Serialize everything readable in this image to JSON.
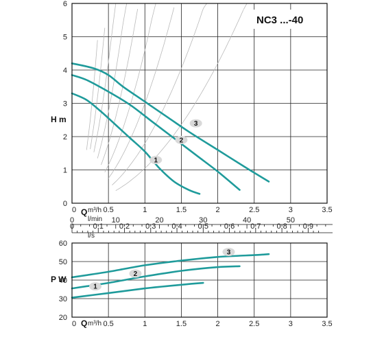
{
  "chart_data": [
    {
      "type": "line",
      "title": "NC3 ...-40",
      "ylabel": "H m",
      "xlabel": "Q",
      "x_unit": "m³/h",
      "xlim": [
        0,
        3.5
      ],
      "ylim": [
        0,
        6
      ],
      "x_ticks": [
        "0",
        "0.5",
        "1",
        "1.5",
        "2",
        "2.5",
        "3",
        "3.5"
      ],
      "y_ticks": [
        "0",
        "1",
        "2",
        "3",
        "4",
        "5",
        "6"
      ],
      "grid": true,
      "secondary_axes": [
        {
          "unit": "l/min",
          "ticks": [
            "0",
            "10",
            "20",
            "30",
            "40",
            "50"
          ]
        },
        {
          "unit": "l/s",
          "ticks": [
            "0",
            "0.1",
            "0.2",
            "0.3",
            "0.4",
            "0.5",
            "0.6",
            "0.7",
            "0.8",
            "0.9"
          ]
        }
      ],
      "series": [
        {
          "name": "1",
          "x": [
            0,
            0.2,
            0.4,
            0.6,
            0.8,
            1.0,
            1.2,
            1.4,
            1.6,
            1.75
          ],
          "y": [
            3.3,
            3.1,
            2.75,
            2.35,
            1.95,
            1.55,
            1.05,
            0.65,
            0.4,
            0.28
          ]
        },
        {
          "name": "2",
          "x": [
            0,
            0.2,
            0.5,
            0.8,
            1.1,
            1.4,
            1.7,
            2.0,
            2.3
          ],
          "y": [
            3.85,
            3.7,
            3.35,
            2.95,
            2.45,
            1.95,
            1.45,
            0.95,
            0.4
          ]
        },
        {
          "name": "3",
          "x": [
            0,
            0.3,
            0.5,
            0.7,
            1.0,
            1.3,
            1.6,
            2.0,
            2.4,
            2.7
          ],
          "y": [
            4.2,
            4.05,
            3.85,
            3.5,
            3.05,
            2.6,
            2.15,
            1.6,
            1.05,
            0.65
          ]
        }
      ],
      "series_labels": [
        "1",
        "2",
        "3"
      ],
      "system_curves": true
    },
    {
      "type": "line",
      "ylabel": "P W",
      "xlabel": "Q",
      "x_unit": "m³/h",
      "xlim": [
        0,
        3.5
      ],
      "ylim": [
        20,
        60
      ],
      "x_ticks": [
        "0",
        "0.5",
        "1",
        "1.5",
        "2",
        "2.5",
        "3",
        "3.5"
      ],
      "y_ticks": [
        "20",
        "30",
        "40",
        "50",
        "60"
      ],
      "grid": true,
      "series": [
        {
          "name": "1",
          "x": [
            0,
            0.5,
            1.0,
            1.5,
            1.8
          ],
          "y": [
            30.5,
            33,
            35.5,
            37.5,
            38.5
          ]
        },
        {
          "name": "2",
          "x": [
            0,
            0.5,
            1.0,
            1.5,
            2.0,
            2.3
          ],
          "y": [
            35.5,
            38.5,
            42,
            45,
            47,
            47.5
          ]
        },
        {
          "name": "3",
          "x": [
            0,
            0.5,
            1.0,
            1.5,
            2.0,
            2.5,
            2.7
          ],
          "y": [
            41.5,
            44.5,
            48,
            50.5,
            52.5,
            53.5,
            54
          ]
        }
      ],
      "series_labels": [
        "1",
        "2",
        "3"
      ]
    }
  ],
  "colors": {
    "curve": "#1f9b9b",
    "system_curve": "#b9b9b9",
    "badge": "#d9d9d9"
  }
}
